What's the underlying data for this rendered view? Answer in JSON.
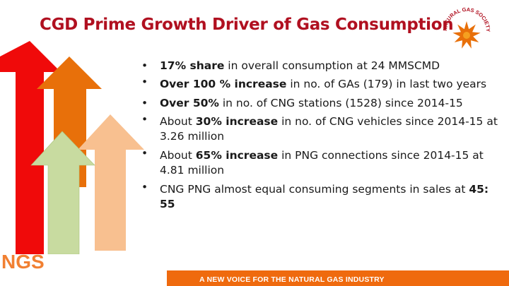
{
  "slide": {
    "title": "CGD Prime Growth Driver of Gas Consumption",
    "logo_text": "NATURAL GAS SOCIETY",
    "corner_logo_text": "NGS",
    "footer": "A NEW VOICE FOR THE NATURAL GAS INDUSTRY",
    "colors": {
      "title": "#b01020",
      "arrow_red": "#f00a0a",
      "arrow_orange": "#e8700a",
      "arrow_green": "#c8dba0",
      "arrow_peach": "#f8c090",
      "footer_bar": "#ef6a0e"
    }
  },
  "bullets": [
    {
      "pre": "",
      "bold": "17% share",
      "post": " in overall consumption  at 24 MMSCMD"
    },
    {
      "pre": "",
      "bold": "Over 100 %  increase",
      "post": "  in no. of GAs (179) in last two years"
    },
    {
      "pre": "",
      "bold": "Over 50%",
      "post": "   in no. of CNG stations (1528) since 2014-15"
    },
    {
      "pre": "About ",
      "bold": "30% increase",
      "post": " in no. of CNG vehicles since 2014-15 at 3.26 million"
    },
    {
      "pre": "About ",
      "bold": "65% increase",
      "post": " in PNG connections since 2014-15  at 4.81 million"
    },
    {
      "pre": "CNG PNG almost equal consuming segments in sales at ",
      "bold": "45: 55",
      "post": ""
    }
  ]
}
